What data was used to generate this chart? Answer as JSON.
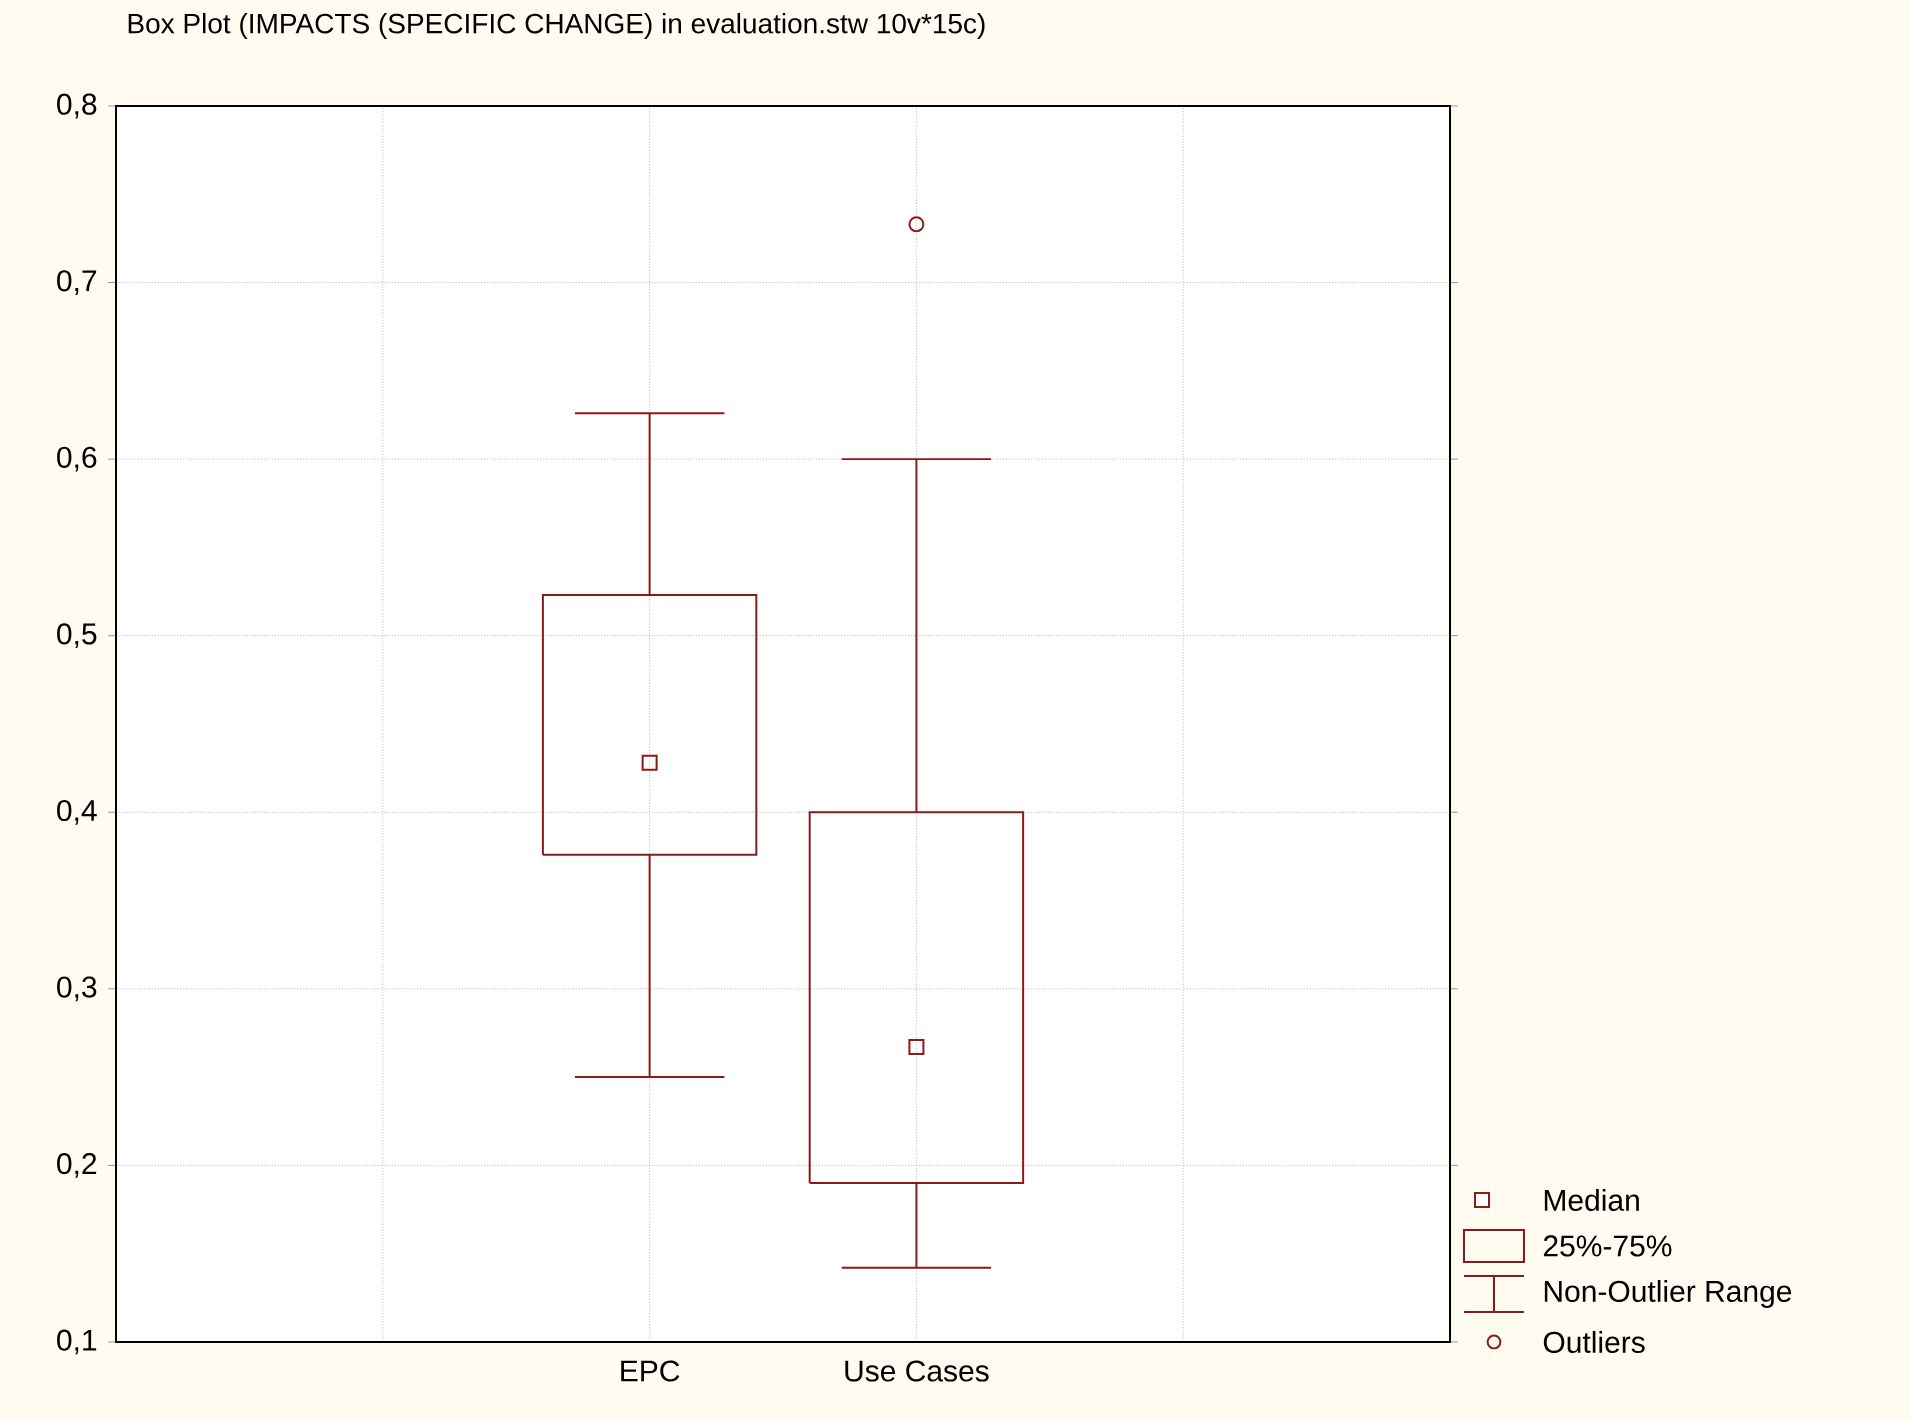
{
  "chart_data": {
    "type": "box",
    "title": "Box Plot (IMPACTS (SPECIFIC CHANGE) in evaluation.stw 10v*15c)",
    "categories": [
      "EPC",
      "Use Cases"
    ],
    "boxes": [
      {
        "low": 0.25,
        "q1": 0.376,
        "median": 0.428,
        "q3": 0.523,
        "high": 0.626
      },
      {
        "low": 0.142,
        "q1": 0.19,
        "median": 0.267,
        "q3": 0.4,
        "high": 0.6,
        "outliers": [
          0.733
        ]
      }
    ],
    "color": "#8b1a1a",
    "ylim": [
      0.1,
      0.8
    ],
    "yticks": [
      {
        "value": 0.1,
        "label": "0,1"
      },
      {
        "value": 0.2,
        "label": "0,2"
      },
      {
        "value": 0.3,
        "label": "0,3"
      },
      {
        "value": 0.4,
        "label": "0,4"
      },
      {
        "value": 0.5,
        "label": "0,5"
      },
      {
        "value": 0.6,
        "label": "0,6"
      },
      {
        "value": 0.7,
        "label": "0,7"
      },
      {
        "value": 0.8,
        "label": "0,8"
      }
    ],
    "grid": true,
    "annotations": [
      "Median",
      "25%-75%",
      "Non-Outlier Range",
      "Outliers"
    ]
  }
}
